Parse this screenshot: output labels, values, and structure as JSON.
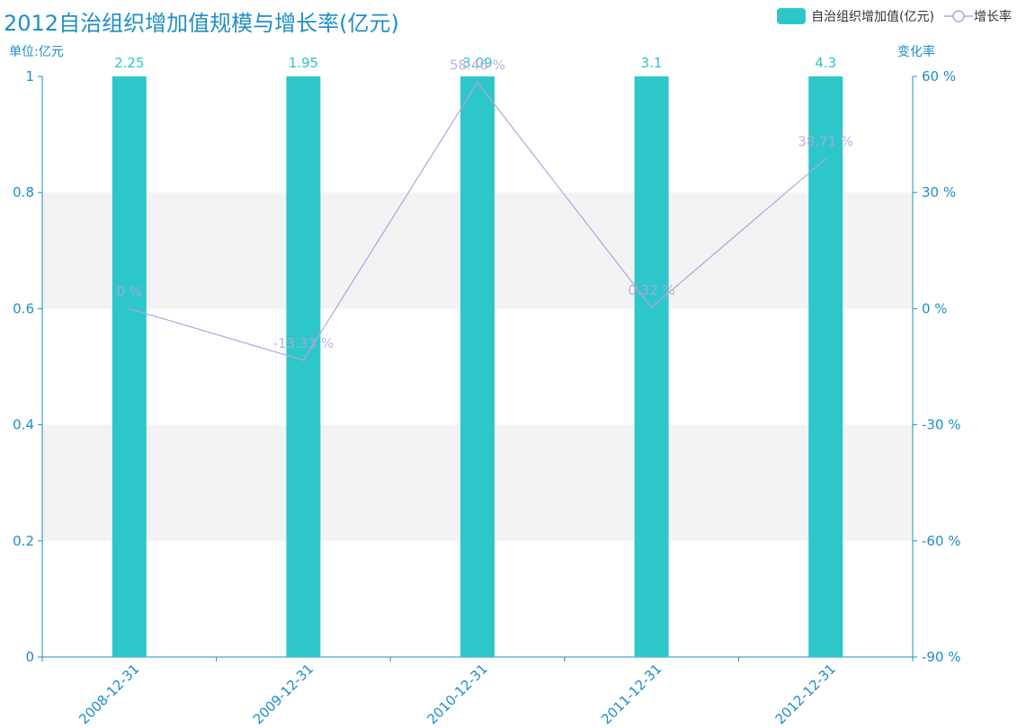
{
  "chart_data": {
    "type": "bar",
    "title": "2012自治组织增加值规模与增长率(亿元)",
    "categories": [
      "2008-12-31",
      "2009-12-31",
      "2010-12-31",
      "2011-12-31",
      "2012-12-31"
    ],
    "series": [
      {
        "name": "自治组织增加值(亿元)",
        "type": "bar",
        "axis": "left",
        "values": [
          2.25,
          1.95,
          3.09,
          3.1,
          4.3
        ],
        "labels": [
          "2.25",
          "1.95",
          "3.09",
          "3.1",
          "4.3"
        ],
        "color": "#2ec7c9"
      },
      {
        "name": "增长率",
        "type": "line",
        "axis": "right",
        "values": [
          0,
          -13.33,
          58.46,
          0.32,
          38.71
        ],
        "labels": [
          "0 %",
          "-13.33 %",
          "58.46 %",
          "0.32 %",
          "38.71 %"
        ],
        "color": "#b6a2de"
      }
    ],
    "y_left": {
      "label": "单位:亿元",
      "min": 0,
      "max": 1,
      "ticks": [
        "0",
        "0.2",
        "0.4",
        "0.6",
        "0.8",
        "1"
      ]
    },
    "y_right": {
      "label": "变化率",
      "min": -90,
      "max": 60,
      "ticks": [
        "-90 %",
        "-60 %",
        "-30 %",
        "0 %",
        "30 %",
        "60 %"
      ]
    },
    "grid": "alternating-bands",
    "legend_position": "top-right"
  },
  "colors": {
    "axis": "#1f8fc4",
    "band": "#f3f3f3"
  }
}
